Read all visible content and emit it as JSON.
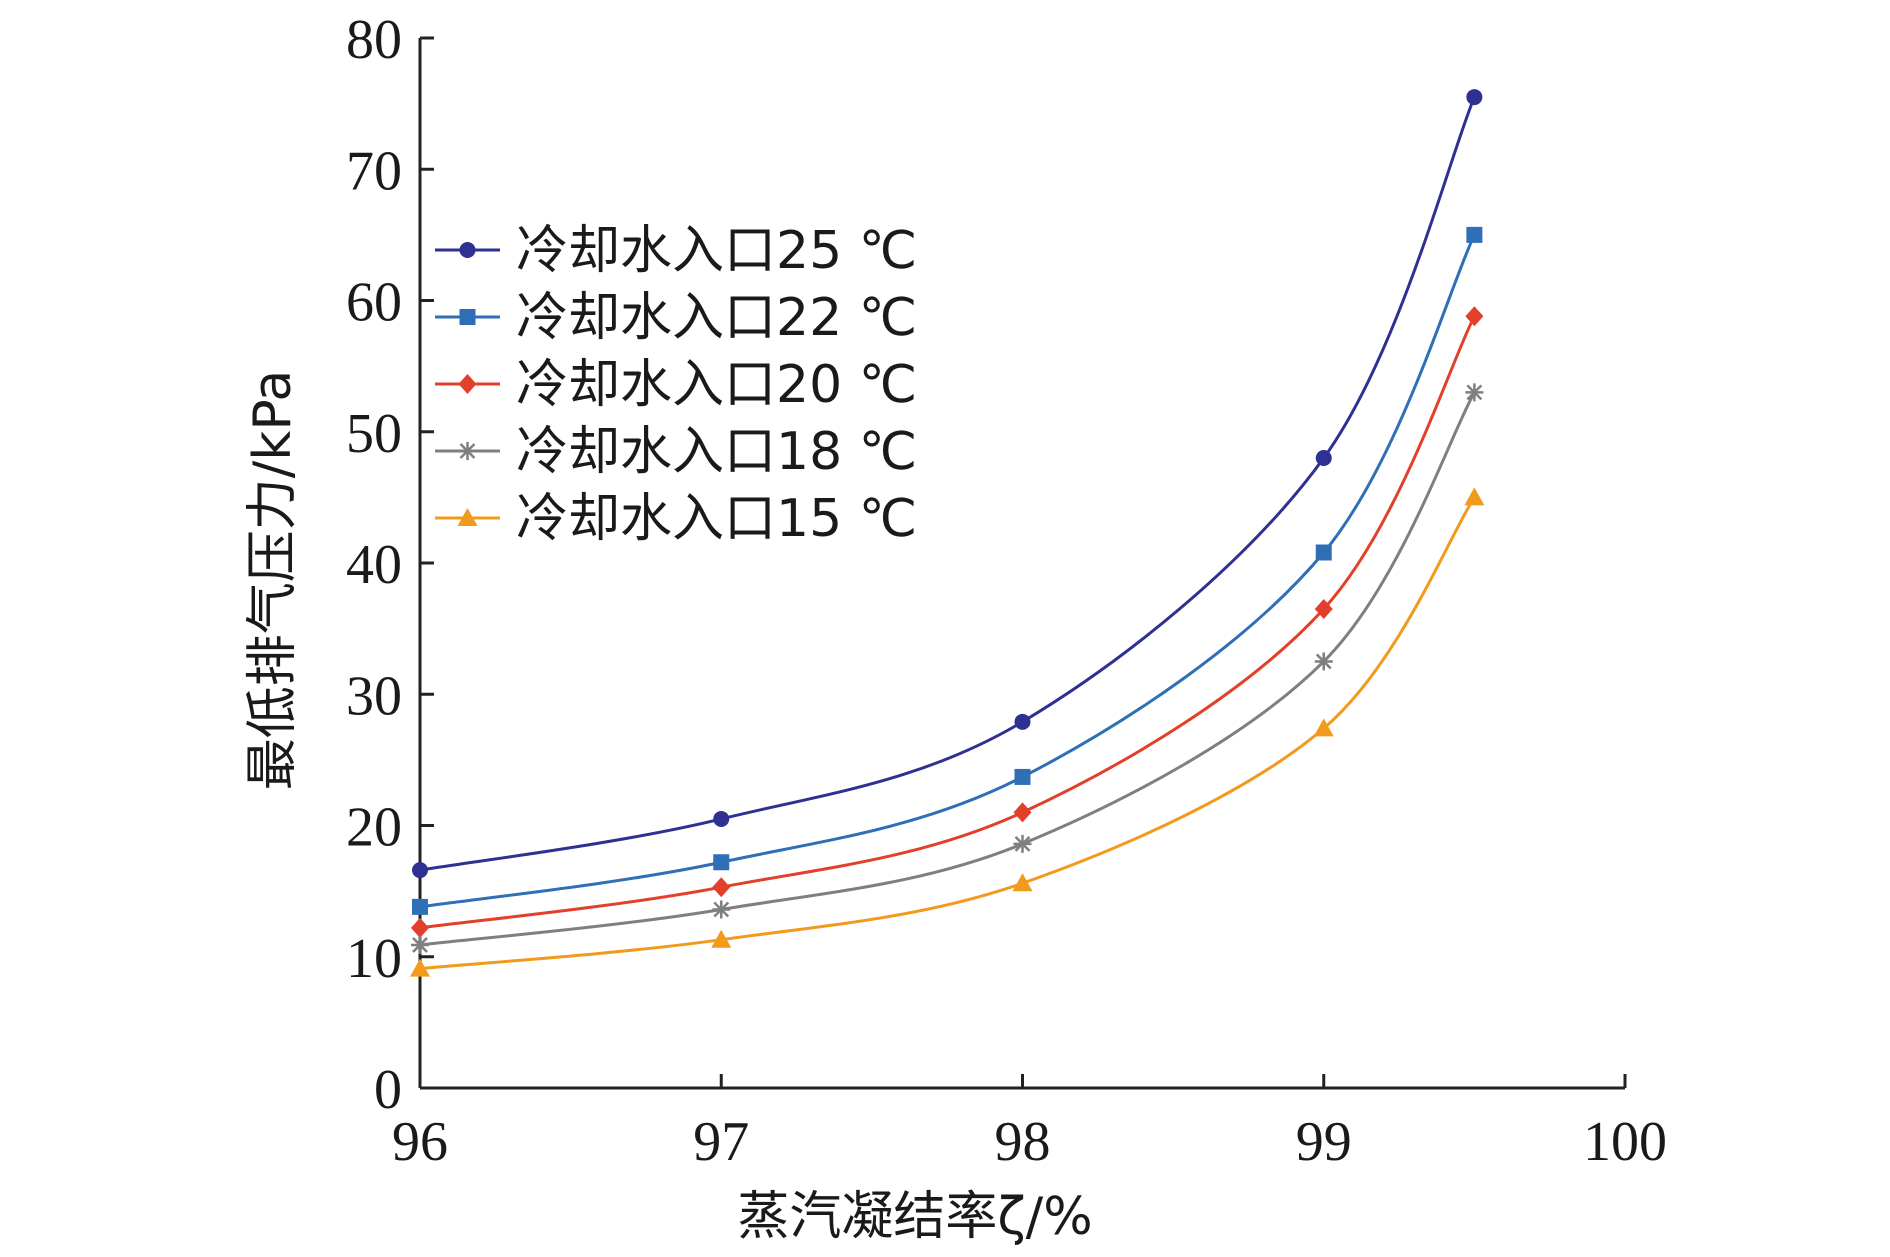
{
  "chart_data": {
    "type": "line",
    "title": "",
    "xlabel": "蒸汽凝结率ζ/%",
    "ylabel": "最低排气压力/kPa",
    "xlim": [
      96,
      100
    ],
    "ylim": [
      0,
      80
    ],
    "xticks": [
      "96",
      "97",
      "98",
      "99",
      "100"
    ],
    "yticks": [
      "0",
      "10",
      "20",
      "30",
      "40",
      "50",
      "60",
      "70",
      "80"
    ],
    "grid": false,
    "legend_position": "top-left",
    "x": [
      96,
      97,
      98,
      99,
      99.5
    ],
    "series": [
      {
        "name": "冷却水入口25 ℃",
        "marker": "circle",
        "color": "#2e3192",
        "values": [
          16.6,
          20.5,
          27.9,
          48.0,
          75.5
        ]
      },
      {
        "name": "冷却水入口22 ℃",
        "marker": "square",
        "color": "#2f6fb5",
        "values": [
          13.8,
          17.2,
          23.7,
          40.8,
          65.0
        ]
      },
      {
        "name": "冷却水入口20 ℃",
        "marker": "diamond",
        "color": "#e2402a",
        "values": [
          12.2,
          15.3,
          21.0,
          36.5,
          58.8
        ]
      },
      {
        "name": "冷却水入口18 ℃",
        "marker": "asterisk",
        "color": "#7f7f7f",
        "values": [
          10.9,
          13.6,
          18.6,
          32.5,
          53.0
        ]
      },
      {
        "name": "冷却水入口15 ℃",
        "marker": "triangle",
        "color": "#f29a1c",
        "values": [
          9.1,
          11.3,
          15.6,
          27.4,
          45.0
        ]
      }
    ]
  }
}
